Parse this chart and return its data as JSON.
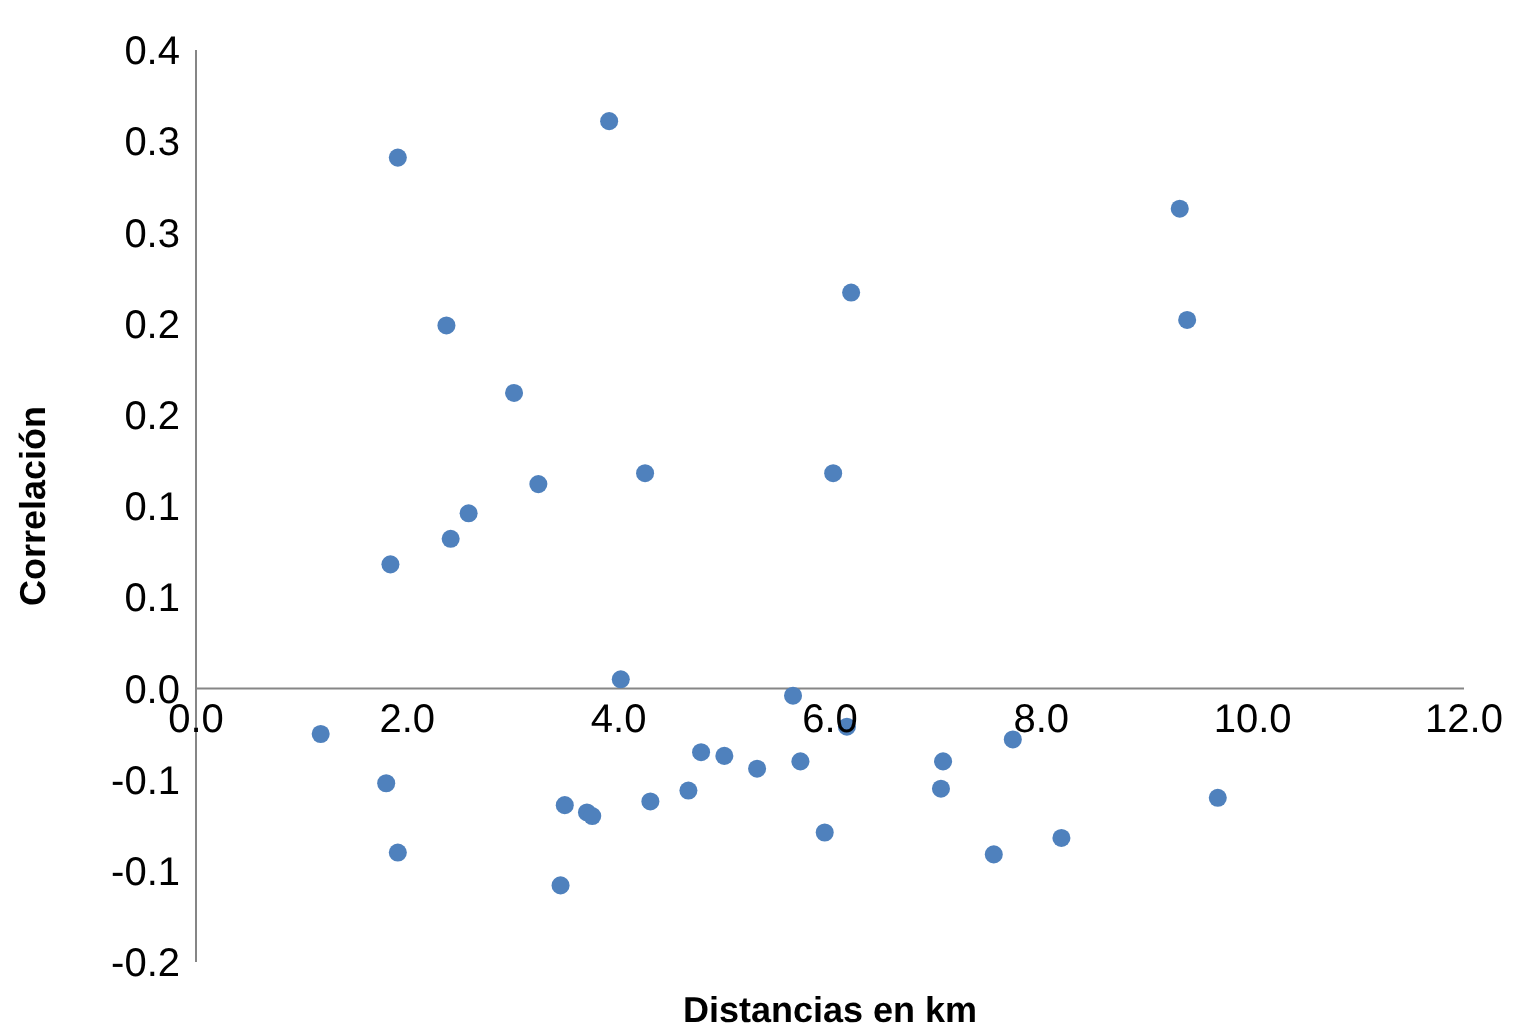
{
  "chart_data": {
    "type": "scatter",
    "xlabel": "Distancias en km",
    "ylabel": "Correlación",
    "color": "#4f81bd",
    "marker": "circle",
    "grid": false,
    "legend": false,
    "xlim": [
      0,
      12
    ],
    "xticks": [
      {
        "value": 0,
        "label": "0.0"
      },
      {
        "value": 2,
        "label": "2.0"
      },
      {
        "value": 4,
        "label": "4.0"
      },
      {
        "value": 6,
        "label": "6.0"
      },
      {
        "value": 8,
        "label": "8.0"
      },
      {
        "value": 10,
        "label": "10.0"
      },
      {
        "value": 12,
        "label": "12.0"
      }
    ],
    "ylim": [
      -0.15,
      0.35
    ],
    "yticks": [
      {
        "value": -0.15,
        "label": "-0.2"
      },
      {
        "value": -0.1,
        "label": "-0.1"
      },
      {
        "value": -0.05,
        "label": "-0.1"
      },
      {
        "value": 0,
        "label": "0.0"
      },
      {
        "value": 0.05,
        "label": "0.1"
      },
      {
        "value": 0.1,
        "label": "0.1"
      },
      {
        "value": 0.15,
        "label": "0.2"
      },
      {
        "value": 0.2,
        "label": "0.2"
      },
      {
        "value": 0.25,
        "label": "0.3"
      },
      {
        "value": 0.3,
        "label": "0.3"
      },
      {
        "value": 0.35,
        "label": "0.4"
      }
    ],
    "x": [
      1.18,
      1.8,
      1.91,
      1.84,
      1.91,
      2.37,
      2.41,
      2.58,
      3.01,
      3.24,
      3.45,
      3.49,
      3.7,
      3.75,
      3.91,
      4.02,
      4.25,
      4.3,
      4.66,
      4.78,
      5.0,
      5.31,
      5.65,
      5.72,
      5.95,
      6.03,
      6.16,
      6.2,
      7.05,
      7.07,
      7.55,
      7.73,
      8.19,
      9.31,
      9.38,
      9.67
    ],
    "values": [
      -0.025,
      -0.052,
      -0.09,
      0.068,
      0.291,
      0.199,
      0.082,
      0.096,
      0.162,
      0.112,
      -0.108,
      -0.064,
      -0.068,
      -0.07,
      0.311,
      0.005,
      0.118,
      -0.062,
      -0.056,
      -0.035,
      -0.037,
      -0.044,
      -0.004,
      -0.04,
      -0.079,
      0.118,
      -0.021,
      0.217,
      -0.055,
      -0.04,
      -0.091,
      -0.028,
      -0.082,
      0.263,
      0.202,
      -0.06
    ]
  }
}
